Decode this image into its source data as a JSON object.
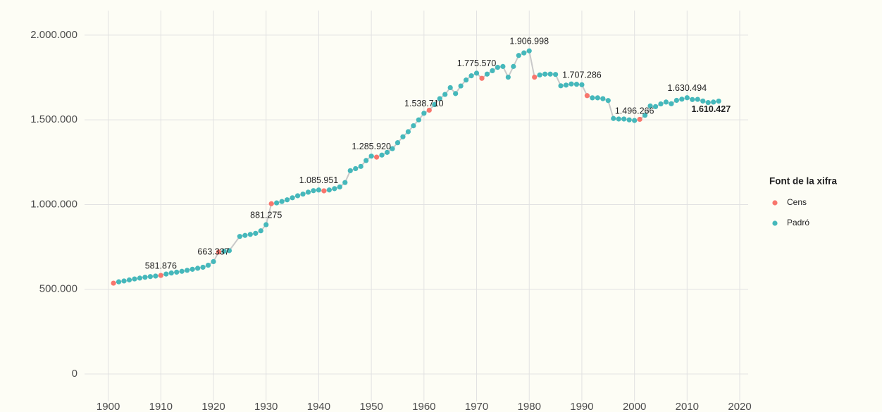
{
  "chart_data": {
    "type": "line",
    "legend_title": "Font de la xifra",
    "series": [
      {
        "name": "Cens",
        "color": "#f8766d"
      },
      {
        "name": "Padró",
        "color": "#45b8bb"
      }
    ],
    "line_color": "#c9c9c9",
    "x": [
      1901,
      1902,
      1903,
      1904,
      1905,
      1906,
      1907,
      1908,
      1909,
      1910,
      1911,
      1912,
      1913,
      1914,
      1915,
      1916,
      1917,
      1918,
      1919,
      1920,
      1921,
      1922,
      1923,
      1925,
      1926,
      1927,
      1928,
      1929,
      1930,
      1931,
      1932,
      1933,
      1934,
      1935,
      1936,
      1937,
      1938,
      1939,
      1940,
      1941,
      1942,
      1943,
      1944,
      1945,
      1946,
      1947,
      1948,
      1949,
      1950,
      1951,
      1952,
      1953,
      1954,
      1955,
      1956,
      1957,
      1958,
      1959,
      1960,
      1961,
      1962,
      1963,
      1964,
      1965,
      1966,
      1967,
      1968,
      1969,
      1970,
      1971,
      1972,
      1973,
      1974,
      1975,
      1976,
      1977,
      1978,
      1979,
      1980,
      1981,
      1982,
      1983,
      1984,
      1985,
      1986,
      1987,
      1988,
      1989,
      1990,
      1991,
      1992,
      1993,
      1994,
      1995,
      1996,
      1997,
      1998,
      1999,
      2000,
      2001,
      2002,
      2003,
      2004,
      2005,
      2006,
      2007,
      2008,
      2009,
      2010,
      2011,
      2012,
      2013,
      2014,
      2015,
      2016
    ],
    "values": [
      536000,
      544000,
      549000,
      555000,
      561000,
      566000,
      571000,
      575000,
      578000,
      581876,
      590000,
      596000,
      601000,
      606000,
      612000,
      618000,
      624000,
      630000,
      642000,
      663337,
      720000,
      724000,
      728000,
      812000,
      818000,
      824000,
      830000,
      845000,
      881275,
      1005000,
      1010000,
      1018000,
      1028000,
      1040000,
      1052000,
      1062000,
      1073000,
      1082000,
      1085951,
      1081000,
      1086000,
      1094000,
      1104000,
      1130000,
      1200000,
      1212000,
      1225000,
      1260000,
      1285920,
      1280000,
      1292000,
      1308000,
      1330000,
      1365000,
      1400000,
      1430000,
      1465000,
      1500000,
      1538710,
      1557000,
      1590000,
      1625000,
      1650000,
      1690000,
      1655000,
      1700000,
      1735000,
      1760000,
      1775570,
      1745000,
      1770000,
      1790000,
      1810000,
      1815000,
      1752000,
      1815000,
      1880000,
      1895000,
      1906998,
      1752000,
      1765000,
      1770000,
      1770000,
      1768000,
      1701000,
      1705000,
      1712000,
      1710000,
      1707286,
      1643000,
      1630000,
      1630000,
      1625000,
      1614000,
      1508000,
      1505000,
      1505000,
      1500000,
      1496266,
      1503000,
      1527000,
      1582000,
      1578000,
      1594000,
      1605000,
      1595000,
      1615000,
      1622000,
      1630494,
      1620000,
      1621000,
      1611000,
      1602000,
      1605000,
      1610427
    ],
    "source": [
      "Cens",
      "Padró",
      "Padró",
      "Padró",
      "Padró",
      "Padró",
      "Padró",
      "Padró",
      "Padró",
      "Cens",
      "Padró",
      "Padró",
      "Padró",
      "Padró",
      "Padró",
      "Padró",
      "Padró",
      "Padró",
      "Padró",
      "Padró",
      "Cens",
      "Padró",
      "Padró",
      "Padró",
      "Padró",
      "Padró",
      "Padró",
      "Padró",
      "Padró",
      "Cens",
      "Padró",
      "Padró",
      "Padró",
      "Padró",
      "Padró",
      "Padró",
      "Padró",
      "Padró",
      "Padró",
      "Cens",
      "Padró",
      "Padró",
      "Padró",
      "Padró",
      "Padró",
      "Padró",
      "Padró",
      "Padró",
      "Padró",
      "Cens",
      "Padró",
      "Padró",
      "Padró",
      "Padró",
      "Padró",
      "Padró",
      "Padró",
      "Padró",
      "Padró",
      "Cens",
      "Padró",
      "Padró",
      "Padró",
      "Padró",
      "Padró",
      "Padró",
      "Padró",
      "Padró",
      "Padró",
      "Cens",
      "Padró",
      "Padró",
      "Padró",
      "Padró",
      "Padró",
      "Padró",
      "Padró",
      "Padró",
      "Padró",
      "Cens",
      "Padró",
      "Padró",
      "Padró",
      "Padró",
      "Padró",
      "Padró",
      "Padró",
      "Padró",
      "Padró",
      "Cens",
      "Padró",
      "Padró",
      "Padró",
      "Padró",
      "Padró",
      "Padró",
      "Padró",
      "Padró",
      "Padró",
      "Cens",
      "Padró",
      "Padró",
      "Padró",
      "Padró",
      "Padró",
      "Padró",
      "Padró",
      "Padró",
      "Padró",
      "Padró",
      "Padró",
      "Padró",
      "Padró",
      "Padró",
      "Padró"
    ],
    "value_labels": [
      null,
      null,
      null,
      null,
      null,
      null,
      null,
      null,
      null,
      "581.876",
      null,
      null,
      null,
      null,
      null,
      null,
      null,
      null,
      null,
      "663.337",
      null,
      null,
      null,
      null,
      null,
      null,
      null,
      null,
      "881.275",
      null,
      null,
      null,
      null,
      null,
      null,
      null,
      null,
      null,
      "1.085.951",
      null,
      null,
      null,
      null,
      null,
      null,
      null,
      null,
      null,
      "1.285.920",
      null,
      null,
      null,
      null,
      null,
      null,
      null,
      null,
      null,
      "1.538.710",
      null,
      null,
      null,
      null,
      null,
      null,
      null,
      null,
      null,
      "1.775.570",
      null,
      null,
      null,
      null,
      null,
      null,
      null,
      null,
      null,
      "1.906.998",
      null,
      null,
      null,
      null,
      null,
      null,
      null,
      null,
      null,
      "1.707.286",
      null,
      null,
      null,
      null,
      null,
      null,
      null,
      null,
      null,
      "1.496.266",
      null,
      null,
      null,
      null,
      null,
      null,
      null,
      null,
      null,
      "1.630.494",
      null,
      null,
      null,
      null,
      null,
      "1.610.427"
    ],
    "xlim": [
      1895.5,
      2021.6
    ],
    "xticks": [
      1900,
      1910,
      1920,
      1930,
      1940,
      1950,
      1960,
      1970,
      1980,
      1990,
      2000,
      2010,
      2020
    ],
    "ylim": [
      -162000,
      2145000
    ],
    "yticks": [
      0,
      {
        "value": 500000,
        "label": "500.000"
      },
      {
        "value": 1000000,
        "label": "1.000.000"
      },
      {
        "value": 1500000,
        "label": "1.500.000"
      },
      {
        "value": 2000000,
        "label": "2.000.000"
      }
    ],
    "grid": true,
    "legend": "right"
  }
}
